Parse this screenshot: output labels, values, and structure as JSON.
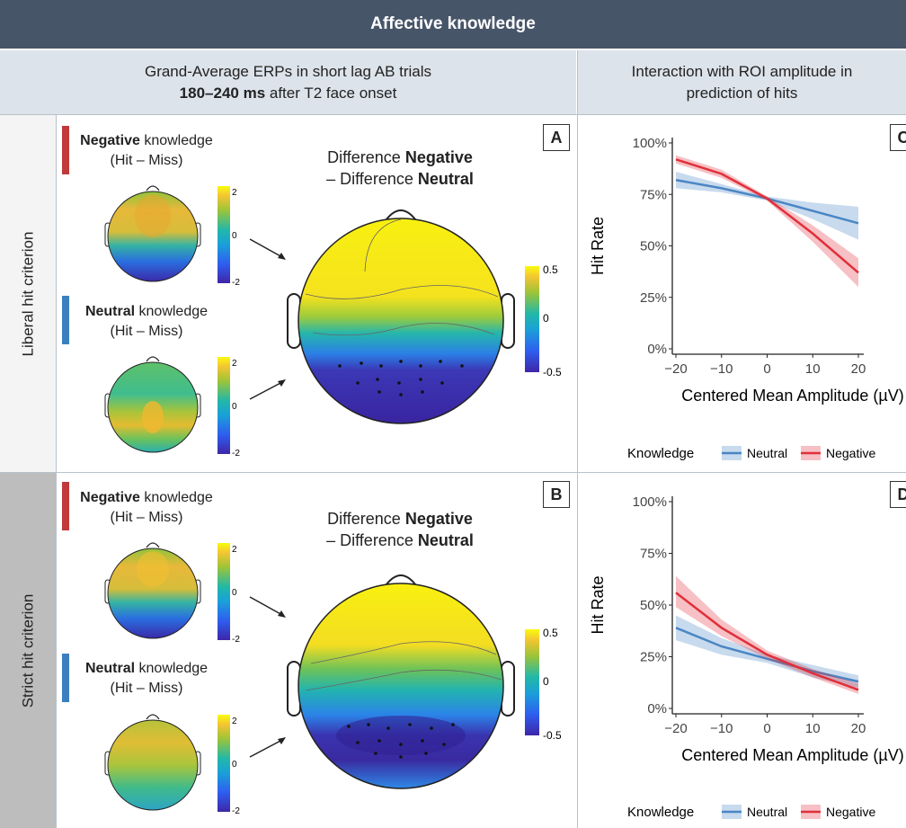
{
  "header": {
    "title": "Affective knowledge"
  },
  "left_header": {
    "line1": "Grand-Average ERPs in short lag AB trials",
    "line2_bold": "180–240 ms",
    "line2_rest": " after T2 face onset"
  },
  "right_header": {
    "line1": "Interaction with ROI amplitude in",
    "line2": "prediction of hits"
  },
  "rows": [
    {
      "label": "Liberal hit criterion",
      "panel": "A",
      "plot_panel": "C"
    },
    {
      "label": "Strict hit criterion",
      "panel": "B",
      "plot_panel": "D"
    }
  ],
  "topo": {
    "neg_bold": "Negative",
    "neg_rest": " knowledge",
    "neu_bold": "Neutral",
    "neu_rest": " knowledge",
    "hitmiss": "(Hit – Miss)",
    "small_scale": [
      "2",
      "0",
      "-2"
    ],
    "diff_line1": "Difference ",
    "diff_neg": "Negative",
    "diff_line2": "– Difference ",
    "diff_neu": "Neutral",
    "big_scale": [
      "0.5",
      "0",
      "-0.5"
    ]
  },
  "colors": {
    "neutral": "#4a86c5",
    "negative": "#e0303a",
    "neg_bar": "#c0393b",
    "neu_bar": "#3a7fbf",
    "banner": "#475569"
  },
  "legend": {
    "title": "Knowledge",
    "neutral": "Neutral",
    "negative": "Negative"
  },
  "chart_data": [
    {
      "type": "line",
      "panel": "C",
      "xlabel": "Centered Mean Amplitude (µV)",
      "ylabel": "Hit Rate",
      "xlim": [
        -20,
        20
      ],
      "ylim": [
        0,
        100
      ],
      "xticks": [
        "−20",
        "−10",
        "0",
        "10",
        "20"
      ],
      "yticks": [
        "0%",
        "25%",
        "50%",
        "75%",
        "100%"
      ],
      "series": [
        {
          "name": "Neutral",
          "x": [
            -20,
            -10,
            0,
            10,
            20
          ],
          "y": [
            82,
            78,
            73,
            67,
            61
          ],
          "lo": [
            78,
            76,
            72,
            63,
            53
          ],
          "hi": [
            86,
            80,
            74,
            71,
            69
          ]
        },
        {
          "name": "Negative",
          "x": [
            -20,
            -10,
            0,
            10,
            20
          ],
          "y": [
            92,
            85,
            73,
            56,
            37
          ],
          "lo": [
            90,
            83,
            72,
            52,
            30
          ],
          "hi": [
            94,
            87,
            74,
            60,
            44
          ]
        }
      ]
    },
    {
      "type": "line",
      "panel": "D",
      "xlabel": "Centered Mean Amplitude (µV)",
      "ylabel": "Hit Rate",
      "xlim": [
        -20,
        20
      ],
      "ylim": [
        0,
        100
      ],
      "xticks": [
        "−20",
        "−10",
        "0",
        "10",
        "20"
      ],
      "yticks": [
        "0%",
        "25%",
        "50%",
        "75%",
        "100%"
      ],
      "series": [
        {
          "name": "Neutral",
          "x": [
            -20,
            -10,
            0,
            10,
            20
          ],
          "y": [
            39,
            30,
            24,
            18,
            13
          ],
          "lo": [
            33,
            26,
            22,
            15,
            10
          ],
          "hi": [
            45,
            34,
            26,
            21,
            16
          ]
        },
        {
          "name": "Negative",
          "x": [
            -20,
            -10,
            0,
            10,
            20
          ],
          "y": [
            56,
            39,
            26,
            17,
            9
          ],
          "lo": [
            49,
            35,
            24,
            15,
            7
          ],
          "hi": [
            64,
            43,
            28,
            19,
            12
          ]
        }
      ]
    }
  ]
}
